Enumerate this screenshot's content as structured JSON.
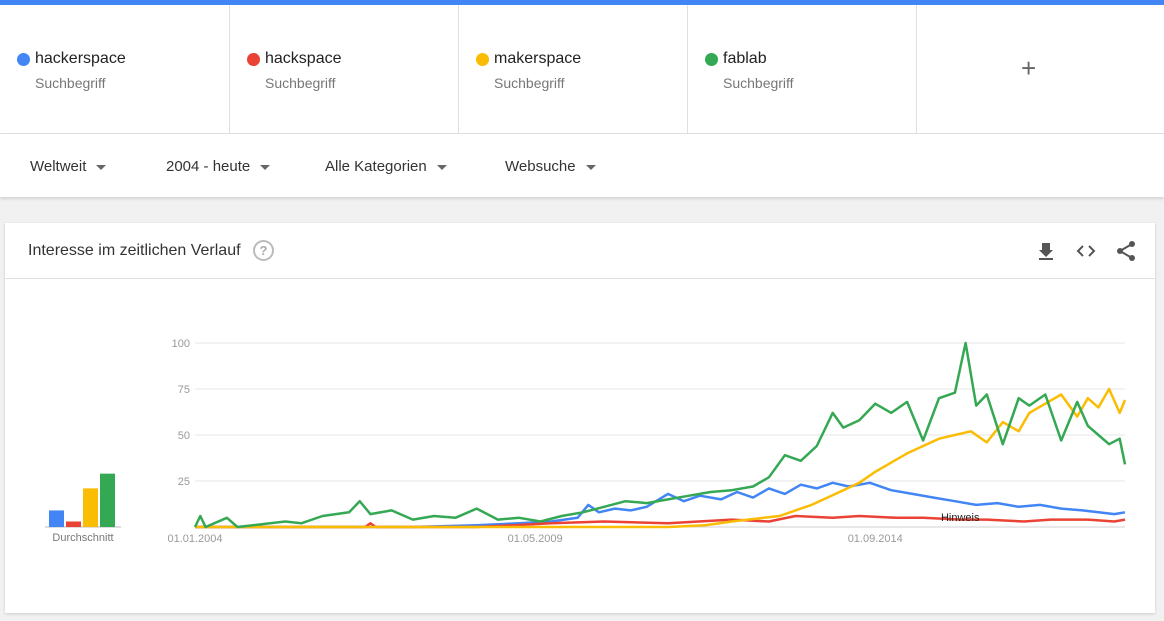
{
  "terms": [
    {
      "name": "hackerspace",
      "sub": "Suchbegriff",
      "color": "#4285f4"
    },
    {
      "name": "hackspace",
      "sub": "Suchbegriff",
      "color": "#ea4335"
    },
    {
      "name": "makerspace",
      "sub": "Suchbegriff",
      "color": "#fbbc04"
    },
    {
      "name": "fablab",
      "sub": "Suchbegriff",
      "color": "#34a853"
    }
  ],
  "add_term": "+",
  "filters": {
    "region": "Weltweit",
    "time": "2004 - heute",
    "category": "Alle Kategorien",
    "search_type": "Websuche"
  },
  "card": {
    "title": "Interesse im zeitlichen Verlauf",
    "help": "?"
  },
  "icons": {
    "download": "download-icon",
    "embed": "embed-code-icon",
    "share": "share-icon"
  },
  "chart_data": {
    "type": "line",
    "title": "Interesse im zeitlichen Verlauf",
    "xlabel": "",
    "ylabel": "",
    "ylim": [
      0,
      100
    ],
    "yticks": [
      25,
      50,
      75,
      100
    ],
    "xtick_labels": [
      "01.01.2004",
      "01.05.2009",
      "01.09.2014"
    ],
    "x_start": "2004-01",
    "x_end": "2018-08",
    "grid": true,
    "legend": "top",
    "annotation": "Hinweis",
    "average_label": "Durchschnitt",
    "averages": [
      {
        "name": "hackerspace",
        "value": 9
      },
      {
        "name": "hackspace",
        "value": 3
      },
      {
        "name": "makerspace",
        "value": 21
      },
      {
        "name": "fablab",
        "value": 29
      }
    ],
    "series": [
      {
        "name": "hackerspace",
        "color": "#4285f4",
        "points": [
          [
            "2004-01",
            0
          ],
          [
            "2007-06",
            0
          ],
          [
            "2008-06",
            1
          ],
          [
            "2009-02",
            2
          ],
          [
            "2009-08",
            3
          ],
          [
            "2010-01",
            5
          ],
          [
            "2010-03",
            12
          ],
          [
            "2010-05",
            8
          ],
          [
            "2010-08",
            10
          ],
          [
            "2010-11",
            9
          ],
          [
            "2011-02",
            11
          ],
          [
            "2011-06",
            18
          ],
          [
            "2011-09",
            14
          ],
          [
            "2011-12",
            17
          ],
          [
            "2012-04",
            15
          ],
          [
            "2012-07",
            19
          ],
          [
            "2012-10",
            16
          ],
          [
            "2013-01",
            21
          ],
          [
            "2013-04",
            18
          ],
          [
            "2013-07",
            23
          ],
          [
            "2013-10",
            21
          ],
          [
            "2014-01",
            24
          ],
          [
            "2014-04",
            22
          ],
          [
            "2014-08",
            24
          ],
          [
            "2014-12",
            20
          ],
          [
            "2015-04",
            18
          ],
          [
            "2015-08",
            16
          ],
          [
            "2015-12",
            14
          ],
          [
            "2016-04",
            12
          ],
          [
            "2016-08",
            13
          ],
          [
            "2016-12",
            11
          ],
          [
            "2017-04",
            12
          ],
          [
            "2017-08",
            10
          ],
          [
            "2017-12",
            9
          ],
          [
            "2018-03",
            8
          ],
          [
            "2018-06",
            7
          ],
          [
            "2018-08",
            8
          ]
        ]
      },
      {
        "name": "hackspace",
        "color": "#ea4335",
        "points": [
          [
            "2004-01",
            0
          ],
          [
            "2006-09",
            0
          ],
          [
            "2006-10",
            2
          ],
          [
            "2006-11",
            0
          ],
          [
            "2008-06",
            0
          ],
          [
            "2009-01",
            1
          ],
          [
            "2009-08",
            2
          ],
          [
            "2010-06",
            3
          ],
          [
            "2011-06",
            2
          ],
          [
            "2012-06",
            4
          ],
          [
            "2013-01",
            3
          ],
          [
            "2013-06",
            6
          ],
          [
            "2014-01",
            5
          ],
          [
            "2014-06",
            6
          ],
          [
            "2015-01",
            5
          ],
          [
            "2015-06",
            5
          ],
          [
            "2016-01",
            4
          ],
          [
            "2016-06",
            4
          ],
          [
            "2017-01",
            3
          ],
          [
            "2017-06",
            4
          ],
          [
            "2018-01",
            4
          ],
          [
            "2018-06",
            3
          ],
          [
            "2018-08",
            4
          ]
        ]
      },
      {
        "name": "makerspace",
        "color": "#fbbc04",
        "points": [
          [
            "2004-01",
            0
          ],
          [
            "2011-06",
            0
          ],
          [
            "2012-01",
            1
          ],
          [
            "2012-06",
            3
          ],
          [
            "2012-12",
            5
          ],
          [
            "2013-03",
            6
          ],
          [
            "2013-06",
            9
          ],
          [
            "2013-09",
            12
          ],
          [
            "2013-12",
            16
          ],
          [
            "2014-03",
            20
          ],
          [
            "2014-06",
            24
          ],
          [
            "2014-09",
            30
          ],
          [
            "2014-12",
            35
          ],
          [
            "2015-03",
            40
          ],
          [
            "2015-06",
            44
          ],
          [
            "2015-09",
            48
          ],
          [
            "2015-12",
            50
          ],
          [
            "2016-03",
            52
          ],
          [
            "2016-06",
            46
          ],
          [
            "2016-09",
            57
          ],
          [
            "2016-12",
            52
          ],
          [
            "2017-02",
            62
          ],
          [
            "2017-05",
            67
          ],
          [
            "2017-08",
            72
          ],
          [
            "2017-11",
            60
          ],
          [
            "2018-01",
            70
          ],
          [
            "2018-03",
            65
          ],
          [
            "2018-05",
            75
          ],
          [
            "2018-07",
            62
          ],
          [
            "2018-08",
            69
          ]
        ]
      },
      {
        "name": "fablab",
        "color": "#34a853",
        "points": [
          [
            "2004-01",
            0
          ],
          [
            "2004-02",
            6
          ],
          [
            "2004-03",
            0
          ],
          [
            "2004-07",
            5
          ],
          [
            "2004-09",
            0
          ],
          [
            "2005-06",
            3
          ],
          [
            "2005-09",
            2
          ],
          [
            "2006-01",
            6
          ],
          [
            "2006-06",
            8
          ],
          [
            "2006-08",
            14
          ],
          [
            "2006-10",
            7
          ],
          [
            "2007-02",
            9
          ],
          [
            "2007-06",
            4
          ],
          [
            "2007-10",
            6
          ],
          [
            "2008-02",
            5
          ],
          [
            "2008-06",
            10
          ],
          [
            "2008-10",
            4
          ],
          [
            "2009-02",
            5
          ],
          [
            "2009-06",
            3
          ],
          [
            "2009-10",
            6
          ],
          [
            "2010-02",
            8
          ],
          [
            "2010-06",
            11
          ],
          [
            "2010-10",
            14
          ],
          [
            "2011-02",
            13
          ],
          [
            "2011-06",
            15
          ],
          [
            "2011-10",
            17
          ],
          [
            "2012-02",
            19
          ],
          [
            "2012-06",
            20
          ],
          [
            "2012-10",
            22
          ],
          [
            "2013-01",
            27
          ],
          [
            "2013-04",
            39
          ],
          [
            "2013-07",
            36
          ],
          [
            "2013-10",
            44
          ],
          [
            "2014-01",
            62
          ],
          [
            "2014-03",
            54
          ],
          [
            "2014-06",
            58
          ],
          [
            "2014-09",
            67
          ],
          [
            "2014-12",
            62
          ],
          [
            "2015-03",
            68
          ],
          [
            "2015-06",
            47
          ],
          [
            "2015-09",
            70
          ],
          [
            "2015-12",
            73
          ],
          [
            "2016-02",
            100
          ],
          [
            "2016-04",
            66
          ],
          [
            "2016-06",
            72
          ],
          [
            "2016-09",
            45
          ],
          [
            "2016-12",
            70
          ],
          [
            "2017-02",
            66
          ],
          [
            "2017-05",
            72
          ],
          [
            "2017-08",
            47
          ],
          [
            "2017-11",
            68
          ],
          [
            "2018-01",
            55
          ],
          [
            "2018-03",
            50
          ],
          [
            "2018-05",
            45
          ],
          [
            "2018-07",
            48
          ],
          [
            "2018-08",
            34
          ]
        ]
      }
    ]
  }
}
